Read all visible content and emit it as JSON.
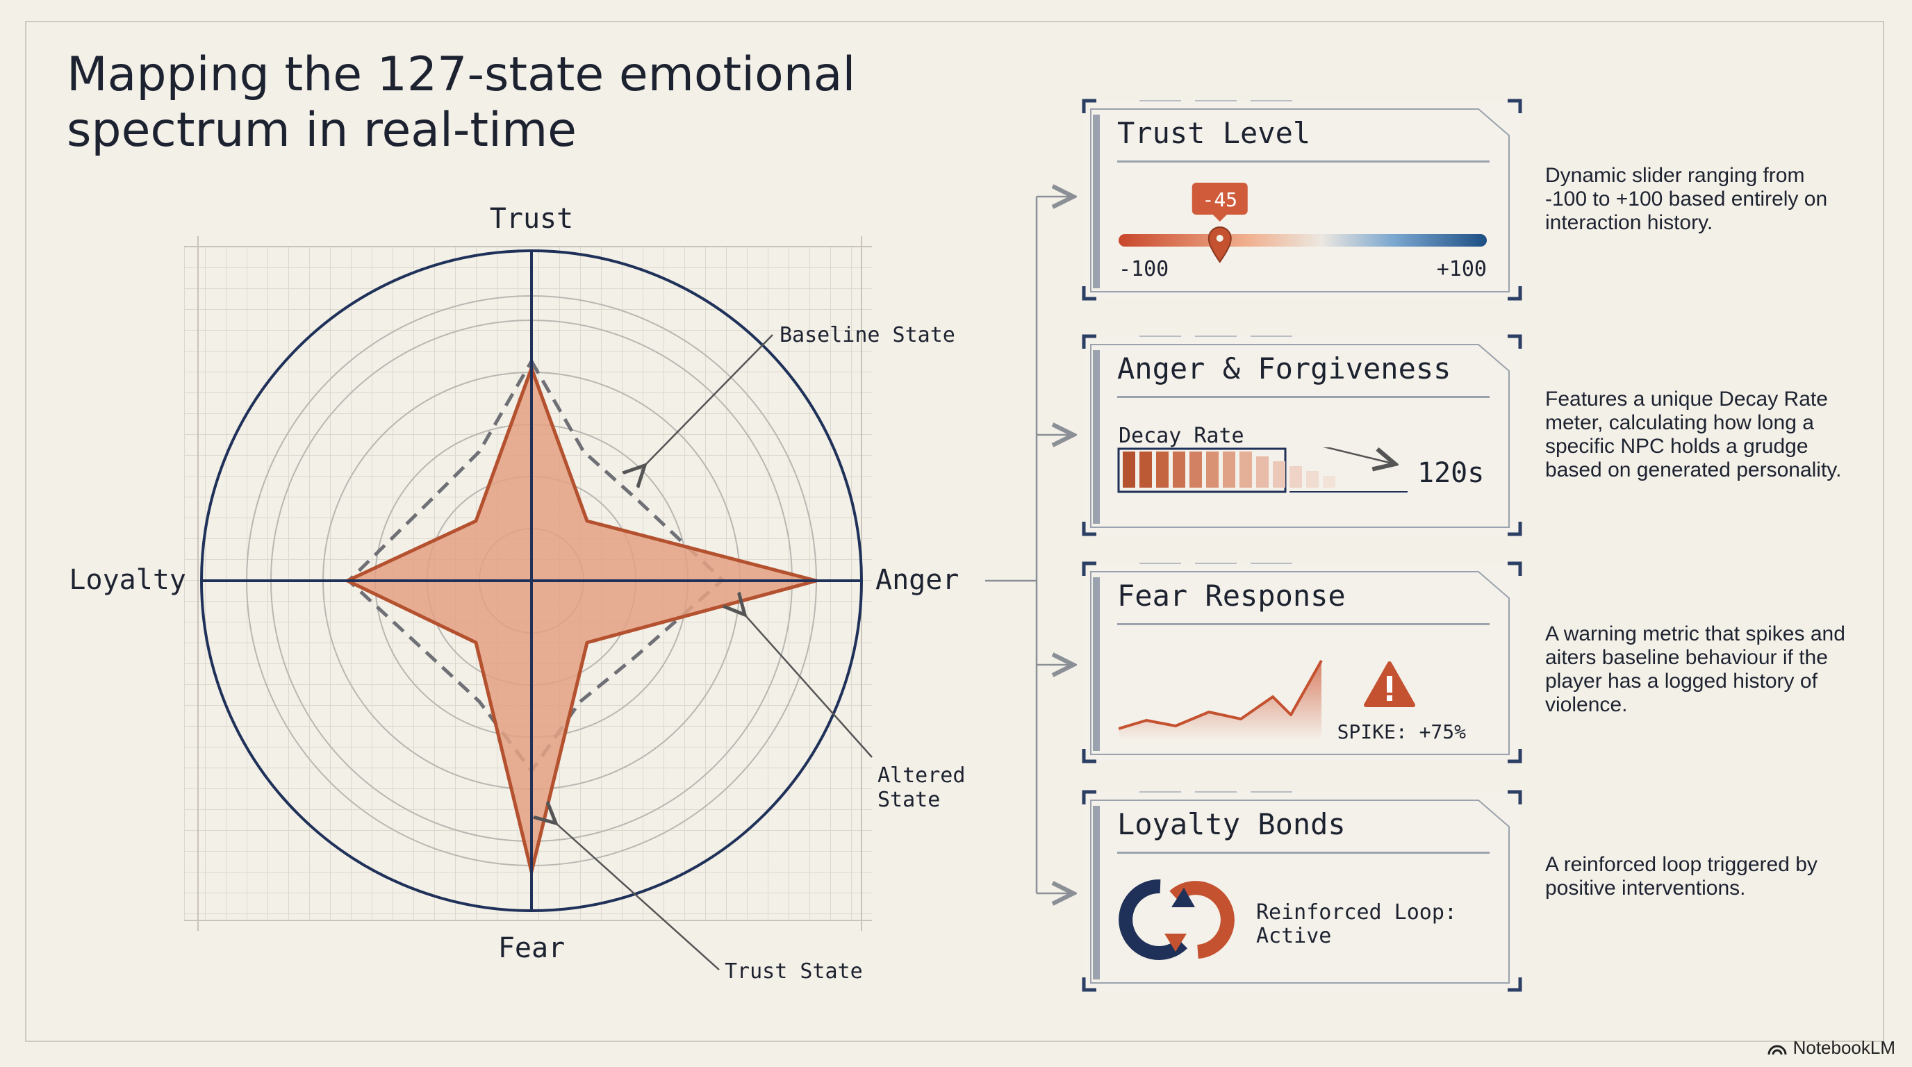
{
  "title": {
    "line1": "Mapping the 127-state emotional",
    "line2": "spectrum in real-time"
  },
  "radar": {
    "axes": {
      "top": "Trust",
      "right": "Anger",
      "bottom": "Fear",
      "left": "Loyalty"
    },
    "annotations": {
      "baseline": "Baseline State",
      "altered_line1": "Altered",
      "altered_line2": "State",
      "trust_state": "Trust State"
    },
    "colors": {
      "fill": "#e3a184",
      "stroke": "#b4512f",
      "axis": "#1f3159",
      "dashed": "#6e7075"
    }
  },
  "panels": {
    "trust": {
      "title": "Trust Level",
      "value_label": "-45",
      "value": -45,
      "range": [
        -100,
        100
      ],
      "min_label": "-100",
      "max_label": "+100",
      "description": "Dynamic slider ranging from -100 to +100 based entirely on interaction history."
    },
    "anger": {
      "title": "Anger & Forgiveness",
      "meter_label": "Decay Rate",
      "meter_value": "120s",
      "description": "Features a unique Decay Rate meter, calculating how long a specific NPC holds a grudge based on generated personality."
    },
    "fear": {
      "title": "Fear Response",
      "spike_label": "SPIKE: +75%",
      "description": "A warning metric that spikes and aiters baseline behaviour if the player has a logged history of violence."
    },
    "loyalty": {
      "title": "Loyalty Bonds",
      "status_line1": "Reinforced Loop:",
      "status_line2": "Active",
      "description": "A reinforced loop triggered by positive interventions."
    }
  },
  "brand": "NotebookLM",
  "icons": [
    "warning-icon",
    "loop-icon",
    "slider-pin-icon",
    "arrow-icon"
  ]
}
